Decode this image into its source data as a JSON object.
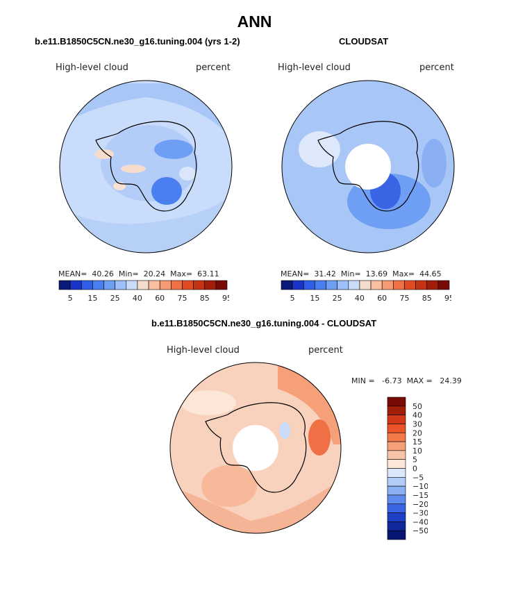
{
  "title": "ANN",
  "panels": [
    {
      "heading": "b.e11.B1850C5CN.ne30_g16.tuning.004 (yrs 1-2)",
      "variable": "High-level cloud",
      "units": "percent",
      "stats": {
        "mean_label": "MEAN=",
        "mean": "40.26",
        "min_label": "Min=",
        "min": "20.24",
        "max_label": "Max=",
        "max": "63.11"
      }
    },
    {
      "heading": "CLOUDSAT",
      "variable": "High-level cloud",
      "units": "percent",
      "stats": {
        "mean_label": "MEAN=",
        "mean": "31.42",
        "min_label": "Min=",
        "min": "13.69",
        "max_label": "Max=",
        "max": "44.65"
      }
    },
    {
      "heading": "b.e11.B1850C5CN.ne30_g16.tuning.004 - CLOUDSAT",
      "variable": "High-level cloud",
      "units": "percent",
      "stats_line": "MIN =   -6.73  MAX =   24.39"
    }
  ],
  "colorbar_abs": {
    "labels": [
      "5",
      "15",
      "25",
      "40",
      "60",
      "75",
      "85",
      "95"
    ],
    "colors": [
      "#0a1a7a",
      "#1a34c8",
      "#2f5ee8",
      "#4a7ff0",
      "#6f9ef5",
      "#9ebff8",
      "#cadcfa",
      "#f6dccc",
      "#f9bfa0",
      "#f69a72",
      "#f07046",
      "#e24a22",
      "#c43414",
      "#a01e0a",
      "#7a0a05"
    ]
  },
  "colorbar_diff": {
    "labels": [
      "50",
      "40",
      "30",
      "20",
      "15",
      "10",
      "5",
      "0",
      "−5",
      "−10",
      "−15",
      "−20",
      "−30",
      "−40",
      "−50"
    ],
    "colors": [
      "#7a0a05",
      "#a01e0a",
      "#d03a18",
      "#ea5428",
      "#f27a4a",
      "#f6a07a",
      "#f8c4a8",
      "#fbe6d8",
      "#dbe8fb",
      "#b3cdf8",
      "#8aaff3",
      "#5f8bee",
      "#3a64e4",
      "#1f3fc4",
      "#10289a",
      "#081672"
    ]
  },
  "colors": {
    "ocean_model": "#c9dcfb",
    "ocean_obs": "#a8c6f6",
    "ocean_diff": "#f9d2bd",
    "coast": "#000000"
  }
}
